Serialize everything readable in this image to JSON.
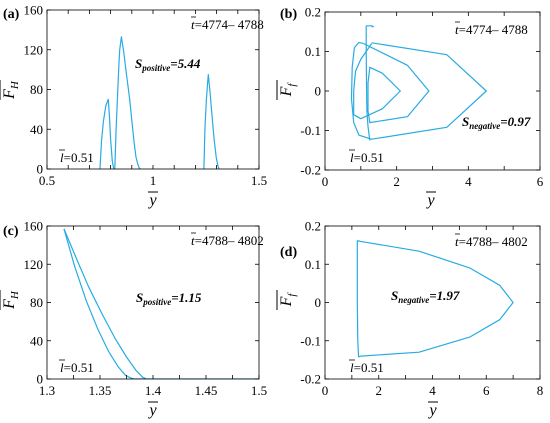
{
  "figure": {
    "line_color": "#29abe2",
    "panels": [
      {
        "id": "a",
        "label": "(a)",
        "xlabel": "y",
        "ylabel": "F_H",
        "ylabel_main": "F",
        "ylabel_sub": "H",
        "xticks": [
          0.5,
          0.6,
          0.7,
          0.8,
          0.9,
          1.0,
          1.1,
          1.2,
          1.3,
          1.4,
          1.5
        ],
        "xtick_labels": [
          "0.5",
          "",
          "",
          "",
          "",
          "1",
          "",
          "",
          "",
          "",
          "1.5"
        ],
        "yticks": [
          0,
          40,
          80,
          120,
          160
        ],
        "ytick_labels": [
          "0",
          "40",
          "80",
          "120",
          "160"
        ],
        "t_prefix": "t",
        "t_range": "=4774– 4788",
        "l_prefix": "l",
        "l_value": "=0.51",
        "s_main": "S",
        "s_sub": "positive",
        "s_value": "=5.44"
      },
      {
        "id": "b",
        "label": "(b)",
        "xlabel": "y",
        "ylabel": "F_f",
        "ylabel_main": "F",
        "ylabel_sub": "f",
        "xticks": [
          0,
          1,
          2,
          3,
          4,
          5,
          6
        ],
        "xtick_labels": [
          "0",
          "",
          "2",
          "",
          "4",
          "",
          "6"
        ],
        "yticks": [
          -0.2,
          -0.1,
          0,
          0.1,
          0.2
        ],
        "ytick_labels": [
          "-0.2",
          "-0.1",
          "0",
          "0.1",
          "0.2"
        ],
        "t_prefix": "t",
        "t_range": "=4774– 4788",
        "l_prefix": "l",
        "l_value": "=0.51",
        "s_main": "S",
        "s_sub": "negative",
        "s_value": "=0.97"
      },
      {
        "id": "c",
        "label": "(c)",
        "xlabel": "y",
        "ylabel": "F_H",
        "ylabel_main": "F",
        "ylabel_sub": "H",
        "xticks": [
          1.3,
          1.325,
          1.35,
          1.375,
          1.4,
          1.425,
          1.45,
          1.475,
          1.5
        ],
        "xtick_labels": [
          "1.3",
          "",
          "1.35",
          "",
          "1.4",
          "",
          "1.45",
          "",
          "1.5"
        ],
        "yticks": [
          0,
          40,
          80,
          120,
          160
        ],
        "ytick_labels": [
          "0",
          "40",
          "80",
          "120",
          "160"
        ],
        "t_prefix": "t",
        "t_range": "=4788– 4802",
        "l_prefix": "l",
        "l_value": "=0.51",
        "s_main": "S",
        "s_sub": "positive",
        "s_value": "=1.15"
      },
      {
        "id": "d",
        "label": "(d)",
        "xlabel": "y",
        "ylabel": "F_f",
        "ylabel_main": "F",
        "ylabel_sub": "f",
        "xticks": [
          0,
          1,
          2,
          3,
          4,
          5,
          6,
          7,
          8
        ],
        "xtick_labels": [
          "0",
          "",
          "2",
          "",
          "4",
          "",
          "6",
          "",
          "8"
        ],
        "yticks": [
          -0.2,
          -0.1,
          0,
          0.1,
          0.2
        ],
        "ytick_labels": [
          "-0.2",
          "-0.1",
          "0",
          "0.1",
          "0.2"
        ],
        "t_prefix": "t",
        "t_range": "=4788– 4802",
        "l_prefix": "l",
        "l_value": "=0.51",
        "s_main": "S",
        "s_sub": "negative",
        "s_value": "=1.97"
      }
    ]
  },
  "chart_data": [
    {
      "type": "line",
      "panel": "(a)",
      "xlabel": "y",
      "ylabel": "F_H",
      "xlim": [
        0.5,
        1.5
      ],
      "ylim": [
        0,
        160
      ],
      "annotations": [
        "t=4774– 4788",
        "l=0.51",
        "S_positive=5.44"
      ],
      "series": [
        {
          "x": [
            0.75,
            0.757,
            0.766,
            0.778,
            0.789,
            0.795,
            0.8,
            0.808,
            0.815
          ],
          "y": [
            0,
            28,
            48,
            64,
            70,
            52,
            30,
            8,
            0
          ]
        },
        {
          "x": [
            0.82,
            0.826,
            0.833,
            0.839,
            0.843,
            0.851,
            0.862,
            0.875,
            0.89,
            0.902,
            0.912,
            0.92,
            0.928,
            0.935,
            0.94
          ],
          "y": [
            0,
            40,
            75,
            105,
            120,
            133,
            118,
            95,
            70,
            45,
            25,
            12,
            5,
            1,
            0
          ]
        },
        {
          "x": [
            1.24,
            1.245,
            1.252,
            1.257,
            1.261,
            1.268,
            1.278,
            1.288,
            1.298,
            1.306,
            1.312
          ],
          "y": [
            0,
            40,
            70,
            85,
            95,
            80,
            55,
            30,
            12,
            3,
            0
          ]
        }
      ]
    },
    {
      "type": "line",
      "panel": "(b)",
      "xlabel": "y",
      "ylabel": "F_f",
      "xlim": [
        0,
        6
      ],
      "ylim": [
        -0.2,
        0.2
      ],
      "annotations": [
        "t=4774– 4788",
        "l=0.51",
        "S_negative=0.97"
      ],
      "series": [
        {
          "x": [
            1.15,
            1.15,
            1.16,
            1.17,
            1.2,
            1.25
          ],
          "y": [
            0.165,
            0.1,
            0,
            -0.05,
            -0.09,
            -0.125
          ]
        },
        {
          "x": [
            1.15,
            1.3,
            1.35,
            1.3
          ],
          "y": [
            0.165,
            0.165,
            0.163,
            0.163
          ]
        },
        {
          "x": [
            1.3,
            3.4,
            4.5,
            3.4,
            1.3,
            0.95,
            0.8
          ],
          "y": [
            0.122,
            0.092,
            0.0,
            -0.092,
            -0.122,
            -0.112,
            -0.08
          ]
        },
        {
          "x": [
            0.8,
            0.74,
            0.76,
            0.82,
            0.95,
            1.08
          ],
          "y": [
            -0.08,
            -0.02,
            0.06,
            0.11,
            0.123,
            0.12
          ]
        },
        {
          "x": [
            1.08,
            2.3,
            2.9,
            2.3,
            1.25,
            1.2,
            1.2,
            1.25,
            1.6,
            2.1,
            1.6,
            1.0,
            0.8,
            0.8,
            0.85,
            1.0,
            1.3
          ],
          "y": [
            0.12,
            0.065,
            0.0,
            -0.065,
            -0.08,
            -0.05,
            0.02,
            0.06,
            0.045,
            0.0,
            -0.045,
            -0.07,
            -0.06,
            0.0,
            0.05,
            0.08,
            0.12
          ]
        }
      ]
    },
    {
      "type": "line",
      "panel": "(c)",
      "xlabel": "y",
      "ylabel": "F_H",
      "xlim": [
        1.3,
        1.5
      ],
      "ylim": [
        0,
        160
      ],
      "annotations": [
        "t=4788– 4802",
        "l=0.51",
        "S_positive=1.15"
      ],
      "series": [
        {
          "x": [
            1.316,
            1.326,
            1.337,
            1.348,
            1.358,
            1.367,
            1.374,
            1.379,
            1.382
          ],
          "y": [
            157,
            118,
            82,
            52,
            29,
            13,
            4,
            1,
            0
          ]
        },
        {
          "x": [
            1.316,
            1.327,
            1.339,
            1.352,
            1.364,
            1.375,
            1.384,
            1.39,
            1.394
          ],
          "y": [
            157,
            128,
            97,
            68,
            43,
            23,
            9,
            2,
            0
          ]
        },
        {
          "x": [
            1.382,
            1.5
          ],
          "y": [
            0,
            0
          ]
        }
      ]
    },
    {
      "type": "line",
      "panel": "(d)",
      "xlabel": "y",
      "ylabel": "F_f",
      "xlim": [
        0,
        8
      ],
      "ylim": [
        -0.2,
        0.2
      ],
      "annotations": [
        "t=4788– 4802",
        "l=0.51",
        "S_negative=1.97"
      ],
      "series": [
        {
          "x": [
            1.2,
            1.3,
            3.5,
            5.4,
            6.5,
            7.0,
            6.5,
            5.4,
            3.5,
            1.35,
            1.25,
            1.22,
            1.2,
            1.2
          ],
          "y": [
            0.162,
            0.16,
            0.134,
            0.09,
            0.045,
            0.0,
            -0.045,
            -0.09,
            -0.13,
            -0.14,
            -0.142,
            -0.1,
            0.0,
            0.162
          ]
        }
      ]
    }
  ]
}
